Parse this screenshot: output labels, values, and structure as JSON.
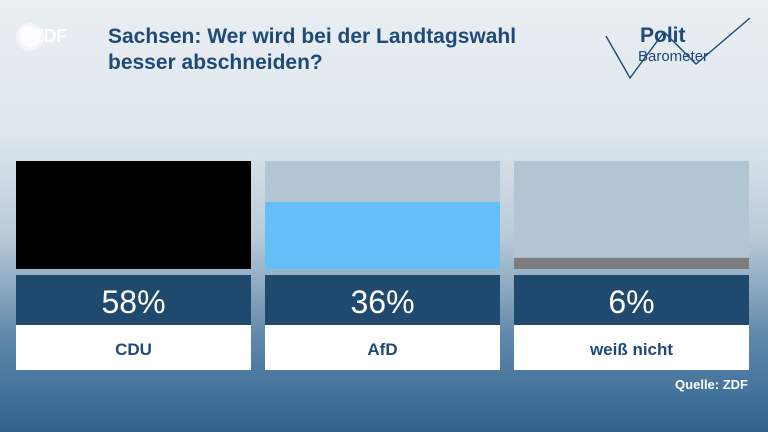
{
  "header": {
    "logo_text": "ZDF",
    "title": "Sachsen: Wer wird bei der Landtagswahl besser abschneiden?",
    "brand_line1": "Polit",
    "brand_line2": "Barometer"
  },
  "footer": {
    "source": "Quelle: ZDF"
  },
  "colors": {
    "title": "#1f4a78",
    "value_band": "#1f4a6e",
    "label_band": "#ffffff",
    "track": "#b2c5d3"
  },
  "chart_data": {
    "type": "bar",
    "categories": [
      "CDU",
      "AfD",
      "weiß nicht"
    ],
    "values": [
      58,
      36,
      6
    ],
    "value_labels": [
      "58%",
      "36%",
      "6%"
    ],
    "colors": [
      "#000000",
      "#63bff5",
      "#7d7d7d"
    ],
    "ylim": [
      0,
      58
    ]
  }
}
